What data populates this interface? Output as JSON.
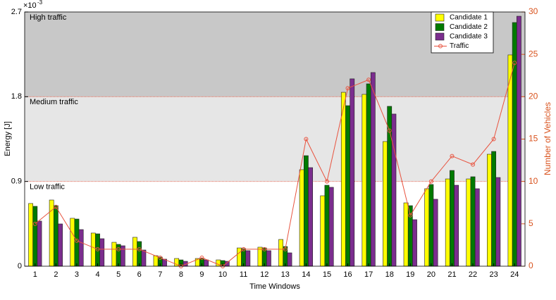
{
  "chart_data": {
    "type": "bar",
    "x_label": "Time Windows",
    "y_label": "Energy [J]",
    "y2_label": "Number of Vehicles",
    "y_multiplier": {
      "base": "×10",
      "exponent": "-3"
    },
    "categories": [
      "1",
      "2",
      "3",
      "4",
      "5",
      "6",
      "7",
      "8",
      "9",
      "10",
      "11",
      "12",
      "13",
      "14",
      "15",
      "16",
      "17",
      "18",
      "19",
      "20",
      "21",
      "22",
      "23",
      "24"
    ],
    "series": [
      {
        "name": "Candidate 1",
        "color": "#ffff00",
        "values": [
          0.666,
          0.703,
          0.509,
          0.352,
          0.254,
          0.307,
          0.112,
          0.082,
          0.082,
          0.067,
          0.194,
          0.202,
          0.284,
          1.025,
          0.748,
          1.847,
          1.825,
          1.324,
          0.673,
          0.823,
          0.927,
          0.927,
          1.189,
          2.244
        ]
      },
      {
        "name": "Candidate 2",
        "color": "#007a00",
        "values": [
          0.636,
          0.643,
          0.501,
          0.344,
          0.232,
          0.262,
          0.097,
          0.067,
          0.082,
          0.06,
          0.187,
          0.194,
          0.209,
          1.174,
          0.86,
          1.705,
          1.937,
          1.698,
          0.643,
          0.868,
          1.017,
          0.95,
          1.219,
          2.588
        ]
      },
      {
        "name": "Candidate 3",
        "color": "#7b2d8e",
        "values": [
          0.479,
          0.449,
          0.389,
          0.292,
          0.217,
          0.172,
          0.075,
          0.052,
          0.067,
          0.052,
          0.165,
          0.165,
          0.142,
          1.047,
          0.838,
          1.99,
          2.057,
          1.616,
          0.494,
          0.711,
          0.86,
          0.823,
          0.942,
          2.655
        ]
      },
      {
        "name": "Traffic",
        "color": "#e8533f",
        "axis": "y2",
        "type": "line",
        "values": [
          5,
          7,
          3,
          2,
          2,
          2,
          1,
          0,
          1,
          0,
          2,
          2,
          2,
          15,
          10,
          21,
          22,
          16,
          6,
          10,
          13,
          12,
          15,
          24
        ]
      }
    ],
    "traffic_levels": [
      {
        "label": "Low traffic",
        "from": 0,
        "to": 0.9,
        "color": "#ffffff"
      },
      {
        "label": "Medium traffic",
        "from": 0.9,
        "to": 1.8,
        "color": "#e6e6e6"
      },
      {
        "label": "High traffic",
        "from": 1.8,
        "to": 2.7,
        "color": "#c8c8c8"
      }
    ],
    "ylim": [
      0,
      2.7
    ],
    "yticks": [
      0,
      0.9,
      1.8,
      2.7
    ],
    "y2lim": [
      0,
      30
    ],
    "y2ticks": [
      0,
      5,
      10,
      15,
      20,
      25,
      30
    ],
    "y2_color": "#d9531e",
    "legend": "upper right"
  }
}
